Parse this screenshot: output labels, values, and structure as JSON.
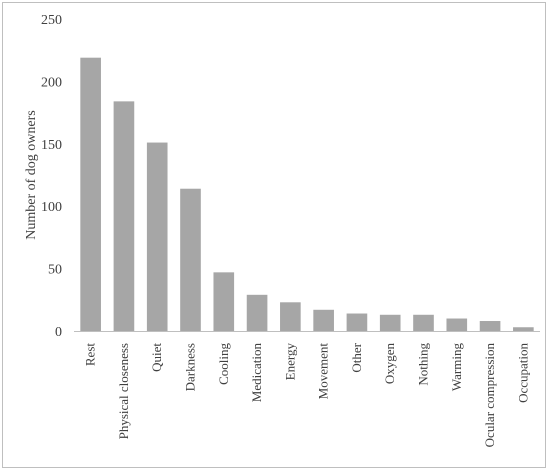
{
  "chart_data": {
    "type": "bar",
    "title": "",
    "xlabel": "",
    "ylabel": "Number of dog owners",
    "ylim": [
      0,
      250
    ],
    "yticks": [
      0,
      50,
      100,
      150,
      200,
      250
    ],
    "grid": false,
    "legend": "none",
    "bar_color": "#a6a6a6",
    "categories": [
      "Rest",
      "Physical closeness",
      "Quiet",
      "Darkness",
      "Cooling",
      "Medication",
      "Energy",
      "Movement",
      "Other",
      "Oxygen",
      "Nothing",
      "Warming",
      "Ocular compression",
      "Occupation"
    ],
    "values": [
      219,
      184,
      151,
      114,
      47,
      29,
      23,
      17,
      14,
      13,
      13,
      10,
      8,
      3
    ]
  }
}
